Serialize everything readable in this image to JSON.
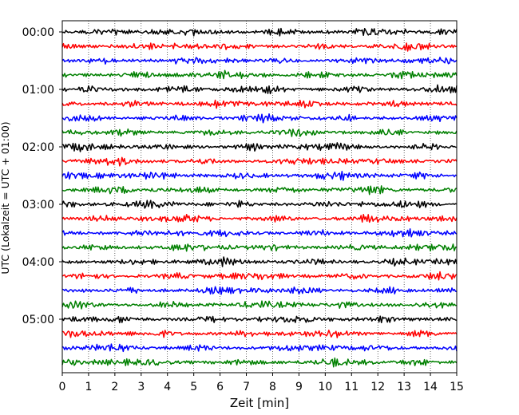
{
  "chart_data": {
    "type": "line",
    "chart_kind": "helicorder",
    "title": "",
    "xlabel": "Zeit  [min]",
    "ylabel": "UTC (Lokalzeit = UTC + 01:00)",
    "xlim": [
      0,
      15
    ],
    "x_ticks": [
      "0",
      "1",
      "2",
      "3",
      "4",
      "5",
      "6",
      "7",
      "8",
      "9",
      "10",
      "11",
      "12",
      "13",
      "14",
      "15"
    ],
    "y_tick_labels": [
      "00:00",
      "01:00",
      "02:00",
      "03:00",
      "04:00",
      "05:00"
    ],
    "trace_interval_minutes": 15,
    "trace_count": 24,
    "trace_colors": [
      "#000000",
      "#ff0000",
      "#0000ff",
      "#008000"
    ],
    "vertical_grid": "dotted at every minute",
    "legend": "none"
  }
}
